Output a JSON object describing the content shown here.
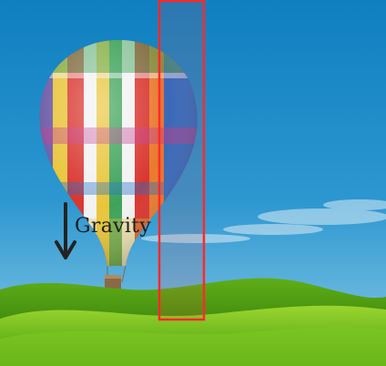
{
  "image": {
    "subject": "hot-air-balloon-over-green-hills",
    "colors": {
      "sky_top": "#1386c4",
      "sky_bottom": "#7cc4e4",
      "grass_light": "#8fd12a",
      "grass_dark": "#2f7e0b",
      "arrow": "#232323",
      "highlight_box": "#ff2a2a"
    },
    "balloon_stripe_colors": [
      "#6c5aa8",
      "#1f6ec9",
      "#e9c53a",
      "#d9362f",
      "#3ea35a",
      "#e87a2c",
      "#f2f2f2",
      "#c2378f"
    ]
  },
  "annotation": {
    "label": "Gravity",
    "arrow_direction": "down",
    "arrow_icon": "down-arrow-icon"
  }
}
